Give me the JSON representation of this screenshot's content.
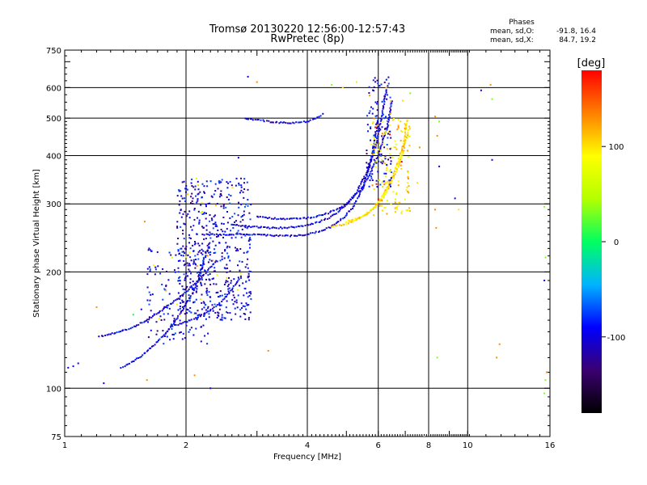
{
  "chart_data": {
    "type": "scatter",
    "title": "Tromsø 20130220 12:56:00-12:57:43",
    "subtitle": "RwPretec (8p)",
    "xlabel": "Frequency [MHz]",
    "ylabel": "Stationary phase Virtual Height [km]",
    "x_scale": "log",
    "y_scale": "log",
    "xlim": [
      1,
      16
    ],
    "ylim": [
      75,
      750
    ],
    "x_ticks": [
      1,
      2,
      4,
      6,
      8,
      10,
      16
    ],
    "x_tick_labels": [
      "1",
      "2",
      "4",
      "6",
      "8",
      "10",
      "16"
    ],
    "y_ticks": [
      75,
      100,
      200,
      300,
      400,
      500,
      600,
      750
    ],
    "y_tick_labels": [
      "75",
      "100",
      "200",
      "300",
      "400",
      "500",
      "600",
      "750"
    ],
    "grid": true,
    "grid_x": [
      2,
      4,
      6,
      8,
      10
    ],
    "grid_y": [
      100,
      200,
      300,
      400,
      500,
      600
    ],
    "colorbar": {
      "label": "[deg]",
      "min": -180,
      "max": 180,
      "ticks": [
        -100,
        0,
        100
      ],
      "tick_labels": [
        "-100",
        "0",
        "100"
      ],
      "colors": [
        "#000000",
        "#3a0070",
        "#0000ff",
        "#00b4ff",
        "#00ff60",
        "#b4ff00",
        "#ffff00",
        "#ff8000",
        "#ff0000"
      ]
    },
    "phases": {
      "heading": "Phases",
      "o_label": "mean, sd,O:",
      "o_values": "-91.8, 16.4",
      "x_label": "mean, sd,X:",
      "x_values": "84.7, 19.2"
    },
    "traces": [
      {
        "x": [
          1.38,
          1.45,
          1.55,
          1.65,
          1.75,
          1.85,
          1.95,
          2.05,
          2.15,
          2.2,
          2.3
        ],
        "y": [
          113,
          116,
          121,
          128,
          136,
          146,
          158,
          172,
          190,
          210,
          240
        ],
        "phase": -100
      },
      {
        "x": [
          1.22,
          1.3,
          1.4,
          1.5,
          1.6,
          1.7,
          1.8,
          1.9,
          2.0,
          2.1,
          2.2,
          2.3,
          2.4
        ],
        "y": [
          136,
          138,
          141,
          145,
          150,
          156,
          163,
          170,
          178,
          186,
          195,
          205,
          215
        ],
        "phase": -100
      },
      {
        "x": [
          1.85,
          1.95,
          2.05,
          2.15,
          2.25,
          2.35,
          2.45,
          2.55,
          2.65,
          2.75
        ],
        "y": [
          145,
          147,
          150,
          153,
          157,
          162,
          168,
          176,
          185,
          195
        ],
        "phase": -100
      },
      {
        "x": [
          2.2,
          2.5,
          2.8,
          3.1,
          3.4,
          3.7,
          4.0,
          4.3,
          4.6,
          4.9,
          5.2,
          5.5,
          5.8,
          6.0
        ],
        "y": [
          250,
          250,
          250,
          249,
          248,
          248,
          250,
          255,
          262,
          275,
          295,
          330,
          400,
          500
        ],
        "phase": -100
      },
      {
        "x": [
          2.6,
          2.9,
          3.2,
          3.5,
          3.8,
          4.1,
          4.4,
          4.7,
          5.0,
          5.3,
          5.6,
          5.9,
          6.1,
          6.3
        ],
        "y": [
          265,
          262,
          260,
          260,
          262,
          266,
          272,
          282,
          298,
          322,
          360,
          420,
          500,
          600
        ],
        "phase": -100
      },
      {
        "x": [
          3.0,
          3.3,
          3.6,
          3.9,
          4.2,
          4.5,
          4.8,
          5.1,
          5.4,
          5.7,
          6.0,
          6.3,
          6.5
        ],
        "y": [
          278,
          275,
          274,
          275,
          278,
          284,
          292,
          305,
          325,
          355,
          400,
          470,
          560
        ],
        "phase": -100
      },
      {
        "x": [
          4.6,
          4.9,
          5.2,
          5.5,
          5.8,
          6.1,
          6.4,
          6.7,
          6.9,
          7.0,
          7.1
        ],
        "y": [
          262,
          265,
          270,
          278,
          290,
          310,
          340,
          380,
          420,
          460,
          500
        ],
        "phase": 100
      },
      {
        "x": [
          5.0,
          5.3,
          5.6,
          5.9,
          6.2,
          6.5,
          6.8,
          7.0,
          7.2
        ],
        "y": [
          270,
          275,
          282,
          295,
          315,
          345,
          385,
          430,
          480
        ],
        "phase": 100
      },
      {
        "x": [
          2.8,
          3.0,
          3.2,
          3.4,
          3.6,
          3.8,
          4.0,
          4.2,
          4.4
        ],
        "y": [
          500,
          495,
          490,
          487,
          486,
          487,
          490,
          500,
          515
        ],
        "phase": -100
      }
    ],
    "clusters": [
      {
        "xmin": 1.9,
        "xmax": 2.9,
        "ymin": 150,
        "ymax": 350,
        "count": 520,
        "phase": -100
      },
      {
        "xmin": 1.6,
        "xmax": 2.3,
        "ymin": 130,
        "ymax": 230,
        "count": 160,
        "phase": -100
      },
      {
        "xmin": 5.8,
        "xmax": 7.2,
        "ymin": 280,
        "ymax": 500,
        "count": 140,
        "phase": 100
      },
      {
        "xmin": 5.6,
        "xmax": 6.5,
        "ymin": 330,
        "ymax": 640,
        "count": 120,
        "phase": -100
      }
    ],
    "points": [
      {
        "x": 1.02,
        "y": 113,
        "phase": -100
      },
      {
        "x": 1.05,
        "y": 114,
        "phase": -100
      },
      {
        "x": 1.08,
        "y": 116,
        "phase": -100
      },
      {
        "x": 1.2,
        "y": 162,
        "phase": 130
      },
      {
        "x": 1.48,
        "y": 155,
        "phase": 0
      },
      {
        "x": 1.55,
        "y": 160,
        "phase": -100
      },
      {
        "x": 1.58,
        "y": 270,
        "phase": 130
      },
      {
        "x": 1.6,
        "y": 105,
        "phase": 130
      },
      {
        "x": 1.25,
        "y": 103,
        "phase": -100
      },
      {
        "x": 1.7,
        "y": 225,
        "phase": -100
      },
      {
        "x": 2.1,
        "y": 108,
        "phase": 130
      },
      {
        "x": 2.3,
        "y": 100,
        "phase": -100
      },
      {
        "x": 2.85,
        "y": 640,
        "phase": -100
      },
      {
        "x": 3.0,
        "y": 620,
        "phase": 130
      },
      {
        "x": 2.7,
        "y": 395,
        "phase": -100
      },
      {
        "x": 3.2,
        "y": 125,
        "phase": 130
      },
      {
        "x": 4.6,
        "y": 610,
        "phase": 30
      },
      {
        "x": 4.9,
        "y": 600,
        "phase": 100
      },
      {
        "x": 5.3,
        "y": 620,
        "phase": 100
      },
      {
        "x": 8.3,
        "y": 505,
        "phase": 130
      },
      {
        "x": 8.4,
        "y": 450,
        "phase": 130
      },
      {
        "x": 8.5,
        "y": 490,
        "phase": 30
      },
      {
        "x": 8.3,
        "y": 290,
        "phase": 130
      },
      {
        "x": 8.35,
        "y": 260,
        "phase": 130
      },
      {
        "x": 8.4,
        "y": 120,
        "phase": 30
      },
      {
        "x": 8.5,
        "y": 375,
        "phase": -100
      },
      {
        "x": 9.3,
        "y": 310,
        "phase": -100
      },
      {
        "x": 9.5,
        "y": 290,
        "phase": 100
      },
      {
        "x": 10.8,
        "y": 590,
        "phase": -100
      },
      {
        "x": 11.4,
        "y": 610,
        "phase": 130
      },
      {
        "x": 11.5,
        "y": 560,
        "phase": 30
      },
      {
        "x": 11.5,
        "y": 390,
        "phase": -100
      },
      {
        "x": 12.0,
        "y": 130,
        "phase": 130
      },
      {
        "x": 11.8,
        "y": 120,
        "phase": 130
      },
      {
        "x": 15.5,
        "y": 295,
        "phase": 30
      },
      {
        "x": 15.6,
        "y": 218,
        "phase": 30
      },
      {
        "x": 15.5,
        "y": 190,
        "phase": -100
      },
      {
        "x": 15.7,
        "y": 110,
        "phase": 130
      },
      {
        "x": 15.6,
        "y": 105,
        "phase": 30
      },
      {
        "x": 15.5,
        "y": 97,
        "phase": 30
      },
      {
        "x": 7.8,
        "y": 75,
        "phase": 30
      },
      {
        "x": 7.5,
        "y": 340,
        "phase": 100
      },
      {
        "x": 7.6,
        "y": 420,
        "phase": 130
      },
      {
        "x": 6.9,
        "y": 555,
        "phase": 100
      },
      {
        "x": 7.2,
        "y": 580,
        "phase": 30
      }
    ]
  }
}
